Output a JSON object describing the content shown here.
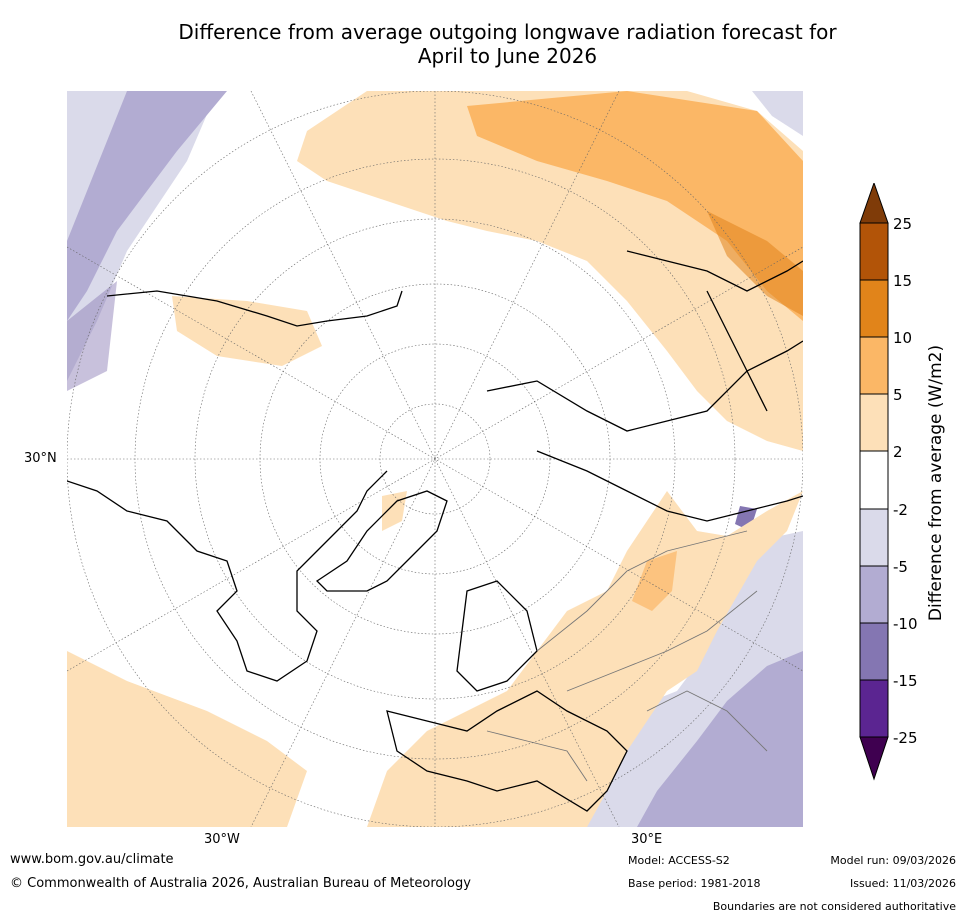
{
  "title": {
    "line1": "Difference from average outgoing longwave radiation forecast for",
    "line2": "April to June 2026"
  },
  "map": {
    "projection": "north-polar-stereographic",
    "latitude_label": "30°N",
    "longitude_labels": {
      "west": "30°W",
      "east": "30°E"
    },
    "colors": {
      "neg25": "#3f0050",
      "neg15": "#5b2591",
      "neg10": "#8476b2",
      "neg5": "#b2acd2",
      "neg2": "#dadaea",
      "zero": "#ffffff",
      "pos2": "#fde0b8",
      "pos5": "#fbb766",
      "pos10": "#e1841a",
      "pos15": "#b25408",
      "pos25": "#7f3b08"
    }
  },
  "colorbar": {
    "title": "Difference from average (W/m2)",
    "levels": [
      "25",
      "15",
      "10",
      "5",
      "2",
      "-2",
      "-5",
      "-10",
      "-15",
      "-25"
    ]
  },
  "footer": {
    "url": "www.bom.gov.au/climate",
    "copyright": "© Commonwealth of Australia 2026, Australian Bureau of Meteorology",
    "model": "Model: ACCESS-S2",
    "base_period": "Base period: 1981-2018",
    "model_run": "Model run: 09/03/2026",
    "issued": "Issued: 11/03/2026",
    "disclaimer": "Boundaries are not considered authoritative"
  }
}
